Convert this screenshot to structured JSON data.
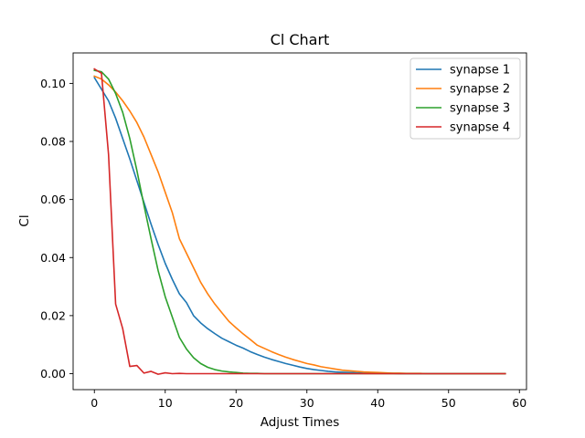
{
  "chart_data": {
    "type": "line",
    "title": "Cl Chart",
    "xlabel": "Adjust Times",
    "ylabel": "Cl",
    "xlim": [
      -3,
      61
    ],
    "ylim": [
      -0.0055,
      0.1105
    ],
    "xticks": [
      0,
      10,
      20,
      30,
      40,
      50,
      60
    ],
    "yticks": [
      0.0,
      0.02,
      0.04,
      0.06,
      0.08,
      0.1
    ],
    "xtick_labels": [
      "0",
      "10",
      "20",
      "30",
      "40",
      "50",
      "60"
    ],
    "ytick_labels": [
      "0.00",
      "0.02",
      "0.04",
      "0.06",
      "0.08",
      "0.10"
    ],
    "grid": false,
    "legend_position": "top-right",
    "series": [
      {
        "name": "synapse 1",
        "color": "#1f77b4",
        "x": [
          0,
          1,
          2,
          3,
          4,
          5,
          6,
          7,
          8,
          9,
          10,
          11,
          12,
          13,
          14,
          15,
          16,
          17,
          18,
          19,
          20,
          21,
          22,
          23,
          24,
          25,
          26,
          27,
          28,
          29,
          30,
          31,
          32,
          33,
          34,
          35,
          36,
          37,
          38,
          39,
          40,
          41,
          42,
          43,
          44,
          45,
          46,
          47,
          48,
          49,
          50,
          51,
          52,
          53,
          54,
          55,
          56,
          57,
          58
        ],
        "y": [
          0.102,
          0.098,
          0.094,
          0.088,
          0.081,
          0.074,
          0.0665,
          0.059,
          0.0515,
          0.0445,
          0.038,
          0.0325,
          0.0275,
          0.0245,
          0.02,
          0.0175,
          0.0155,
          0.0138,
          0.0122,
          0.011,
          0.0098,
          0.0088,
          0.0076,
          0.0066,
          0.0057,
          0.0049,
          0.0042,
          0.0035,
          0.0029,
          0.0023,
          0.0018,
          0.0014,
          0.0011,
          0.0008,
          0.0006,
          0.0005,
          0.0004,
          0.0003,
          0.0002,
          0.0002,
          0.0001,
          0.0001,
          0.0001,
          0.0,
          0.0,
          0.0,
          0.0,
          0.0,
          0.0,
          0.0,
          0.0,
          0.0,
          0.0,
          0.0,
          0.0,
          0.0,
          0.0,
          0.0,
          0.0
        ]
      },
      {
        "name": "synapse 2",
        "color": "#ff7f0e",
        "x": [
          0,
          1,
          2,
          3,
          4,
          5,
          6,
          7,
          8,
          9,
          10,
          11,
          12,
          13,
          14,
          15,
          16,
          17,
          18,
          19,
          20,
          21,
          22,
          23,
          24,
          25,
          26,
          27,
          28,
          29,
          30,
          31,
          32,
          33,
          34,
          35,
          36,
          37,
          38,
          39,
          40,
          41,
          42,
          43,
          44,
          45,
          46,
          47,
          48,
          49,
          50,
          51,
          52,
          53,
          54,
          55,
          56,
          57,
          58
        ],
        "y": [
          0.1025,
          0.1015,
          0.0995,
          0.097,
          0.094,
          0.0905,
          0.0865,
          0.0815,
          0.0755,
          0.0695,
          0.0625,
          0.0555,
          0.0465,
          0.0415,
          0.0365,
          0.0315,
          0.0275,
          0.024,
          0.021,
          0.018,
          0.0158,
          0.0137,
          0.0118,
          0.0098,
          0.0087,
          0.0076,
          0.0066,
          0.0057,
          0.0049,
          0.0042,
          0.0035,
          0.003,
          0.0024,
          0.002,
          0.0016,
          0.0012,
          0.001,
          0.0008,
          0.0006,
          0.0005,
          0.0004,
          0.0003,
          0.0002,
          0.0002,
          0.0001,
          0.0001,
          0.0001,
          0.0,
          0.0,
          0.0,
          0.0,
          0.0,
          0.0,
          0.0,
          0.0,
          0.0,
          0.0,
          0.0,
          0.0
        ]
      },
      {
        "name": "synapse 3",
        "color": "#2ca02c",
        "x": [
          0,
          1,
          2,
          3,
          4,
          5,
          6,
          7,
          8,
          9,
          10,
          11,
          12,
          13,
          14,
          15,
          16,
          17,
          18,
          19,
          20,
          21,
          22,
          23,
          24,
          25,
          26,
          27,
          28,
          29,
          30,
          31,
          32,
          33,
          34,
          35,
          36,
          37,
          38,
          39,
          40,
          41,
          42,
          43,
          44,
          45,
          46,
          47,
          48,
          49,
          50,
          51,
          52,
          53,
          54,
          55,
          56,
          57,
          58
        ],
        "y": [
          0.1045,
          0.104,
          0.1015,
          0.0965,
          0.09,
          0.081,
          0.07,
          0.058,
          0.0465,
          0.0355,
          0.0265,
          0.0195,
          0.0125,
          0.0085,
          0.0055,
          0.0035,
          0.0022,
          0.0014,
          0.0009,
          0.0006,
          0.0004,
          0.0002,
          0.0001,
          0.0001,
          0.0,
          0.0,
          0.0,
          0.0,
          0.0,
          0.0,
          0.0,
          0.0,
          0.0,
          0.0,
          0.0,
          0.0,
          0.0,
          0.0,
          0.0,
          0.0,
          0.0,
          0.0,
          0.0,
          0.0,
          0.0,
          0.0,
          0.0,
          0.0,
          0.0,
          0.0,
          0.0,
          0.0,
          0.0,
          0.0,
          0.0,
          0.0,
          0.0,
          0.0,
          0.0
        ]
      },
      {
        "name": "synapse 4",
        "color": "#d62728",
        "x": [
          0,
          1,
          2,
          3,
          4,
          5,
          6,
          7,
          8,
          9,
          10,
          11,
          12,
          13,
          14,
          15,
          16,
          17,
          18,
          19,
          20,
          21,
          22,
          23,
          24,
          25,
          26,
          27,
          28,
          29,
          30,
          31,
          32,
          33,
          34,
          35,
          36,
          37,
          38,
          39,
          40,
          41,
          42,
          43,
          44,
          45,
          46,
          47,
          48,
          49,
          50,
          51,
          52,
          53,
          54,
          55,
          56,
          57,
          58
        ],
        "y": [
          0.105,
          0.1035,
          0.0755,
          0.024,
          0.0155,
          0.0025,
          0.0028,
          0.0002,
          0.0008,
          -0.0002,
          0.0003,
          0.0,
          0.0001,
          0.0,
          0.0,
          0.0,
          0.0,
          0.0,
          0.0,
          0.0,
          0.0,
          0.0,
          0.0,
          0.0,
          0.0,
          0.0,
          0.0,
          0.0,
          0.0,
          0.0,
          0.0,
          0.0,
          0.0,
          0.0,
          0.0,
          0.0,
          0.0,
          0.0,
          0.0,
          0.0,
          0.0,
          0.0,
          0.0,
          0.0,
          0.0,
          0.0,
          0.0,
          0.0,
          0.0,
          0.0,
          0.0,
          0.0,
          0.0,
          0.0,
          0.0,
          0.0,
          0.0,
          0.0,
          0.0
        ]
      }
    ]
  }
}
